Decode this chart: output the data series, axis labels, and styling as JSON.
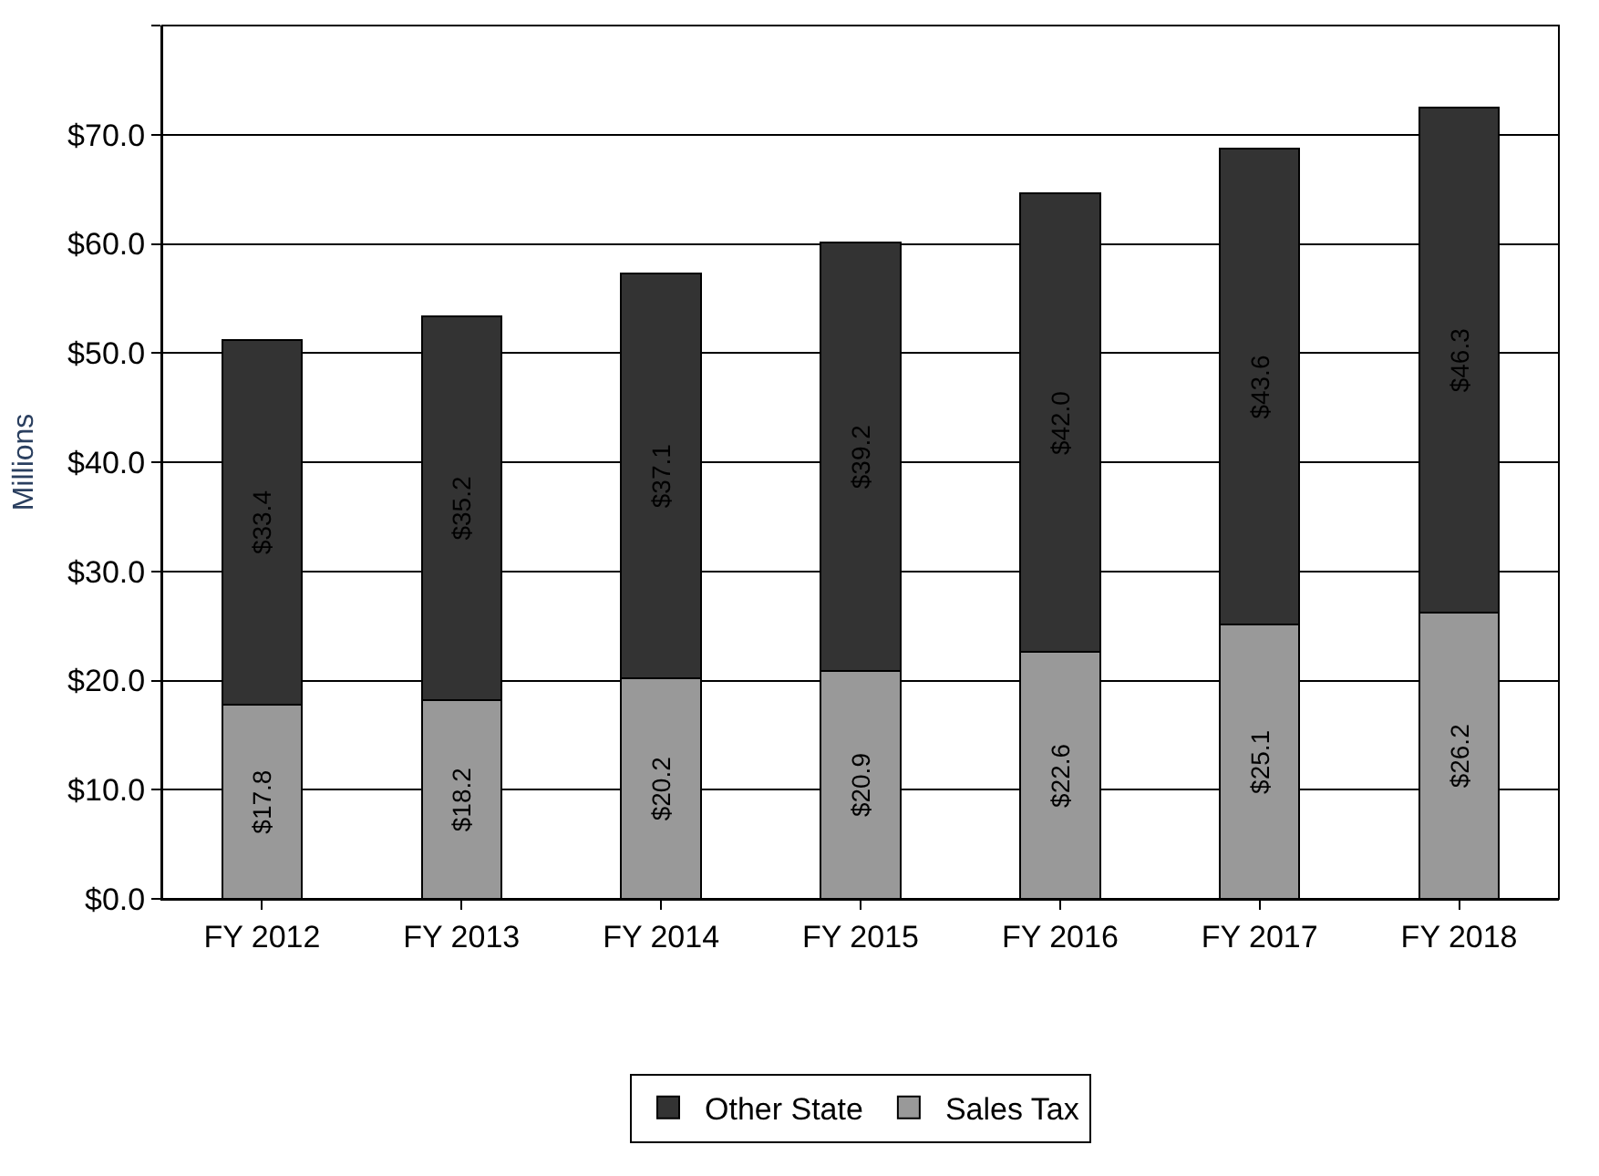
{
  "chart_data": {
    "type": "bar",
    "stacked": true,
    "ylabel": "Millions",
    "categories": [
      "FY 2012",
      "FY 2013",
      "FY 2014",
      "FY 2015",
      "FY 2016",
      "FY 2017",
      "FY 2018"
    ],
    "series": [
      {
        "name": "Sales Tax",
        "color": "#999999",
        "values": [
          17.8,
          18.2,
          20.2,
          20.9,
          22.6,
          25.1,
          26.2
        ],
        "value_labels": [
          "$17.8",
          "$18.2",
          "$20.2",
          "$20.9",
          "$22.6",
          "$25.1",
          "$26.2"
        ]
      },
      {
        "name": "Other State",
        "color": "#333333",
        "values": [
          33.4,
          35.2,
          37.1,
          39.2,
          42.0,
          43.6,
          46.3
        ],
        "value_labels": [
          "$33.4",
          "$35.2",
          "$37.1",
          "$39.2",
          "$42.0",
          "$43.6",
          "$46.3"
        ]
      }
    ],
    "ylim": [
      0,
      80
    ],
    "yticks": [
      {
        "value": 0,
        "label": "$0.0"
      },
      {
        "value": 10,
        "label": "$10.0"
      },
      {
        "value": 20,
        "label": "$20.0"
      },
      {
        "value": 30,
        "label": "$30.0"
      },
      {
        "value": 40,
        "label": "$40.0"
      },
      {
        "value": 50,
        "label": "$50.0"
      },
      {
        "value": 60,
        "label": "$60.0"
      },
      {
        "value": 70,
        "label": "$70.0"
      },
      {
        "value": 80,
        "label": null
      }
    ],
    "grid": "y",
    "legend": "bottom"
  }
}
